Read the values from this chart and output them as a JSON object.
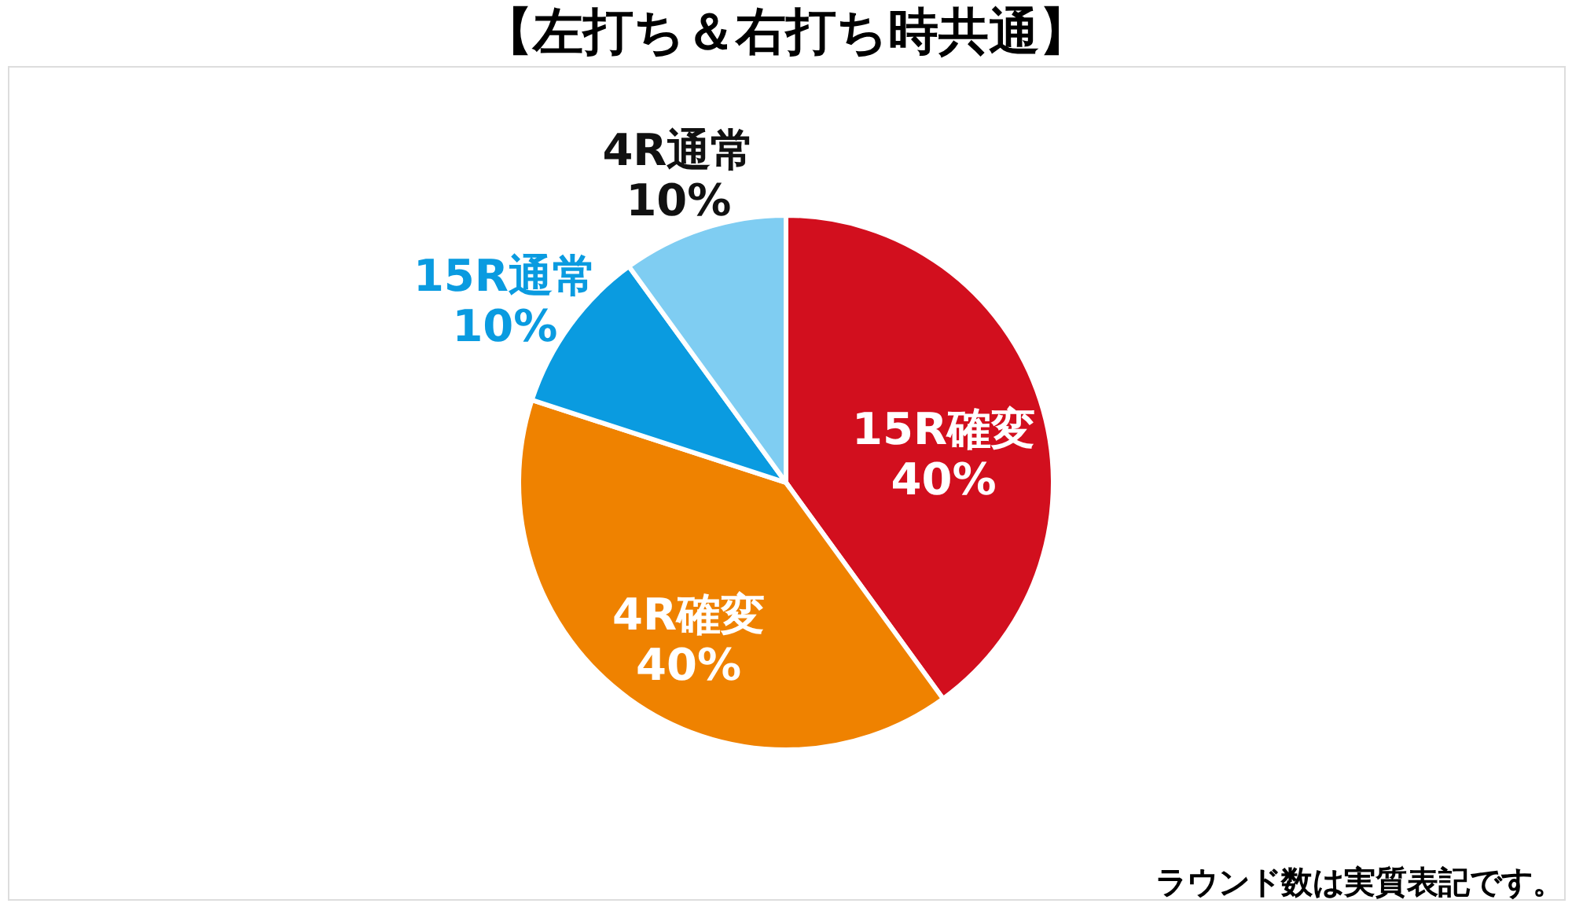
{
  "chart_data": {
    "type": "pie",
    "title": "【左打ち＆右打ち時共通】",
    "categories": [
      "15R確変",
      "4R確変",
      "15R通常",
      "4R通常"
    ],
    "values": [
      40,
      40,
      10,
      10
    ],
    "colors": [
      "#d20f1e",
      "#ef8200",
      "#0a9be0",
      "#7fcdf2"
    ],
    "value_labels": [
      "40%",
      "40%",
      "10%",
      "10%"
    ],
    "annotations": [
      "ラウンド数は実質表記です。"
    ]
  }
}
